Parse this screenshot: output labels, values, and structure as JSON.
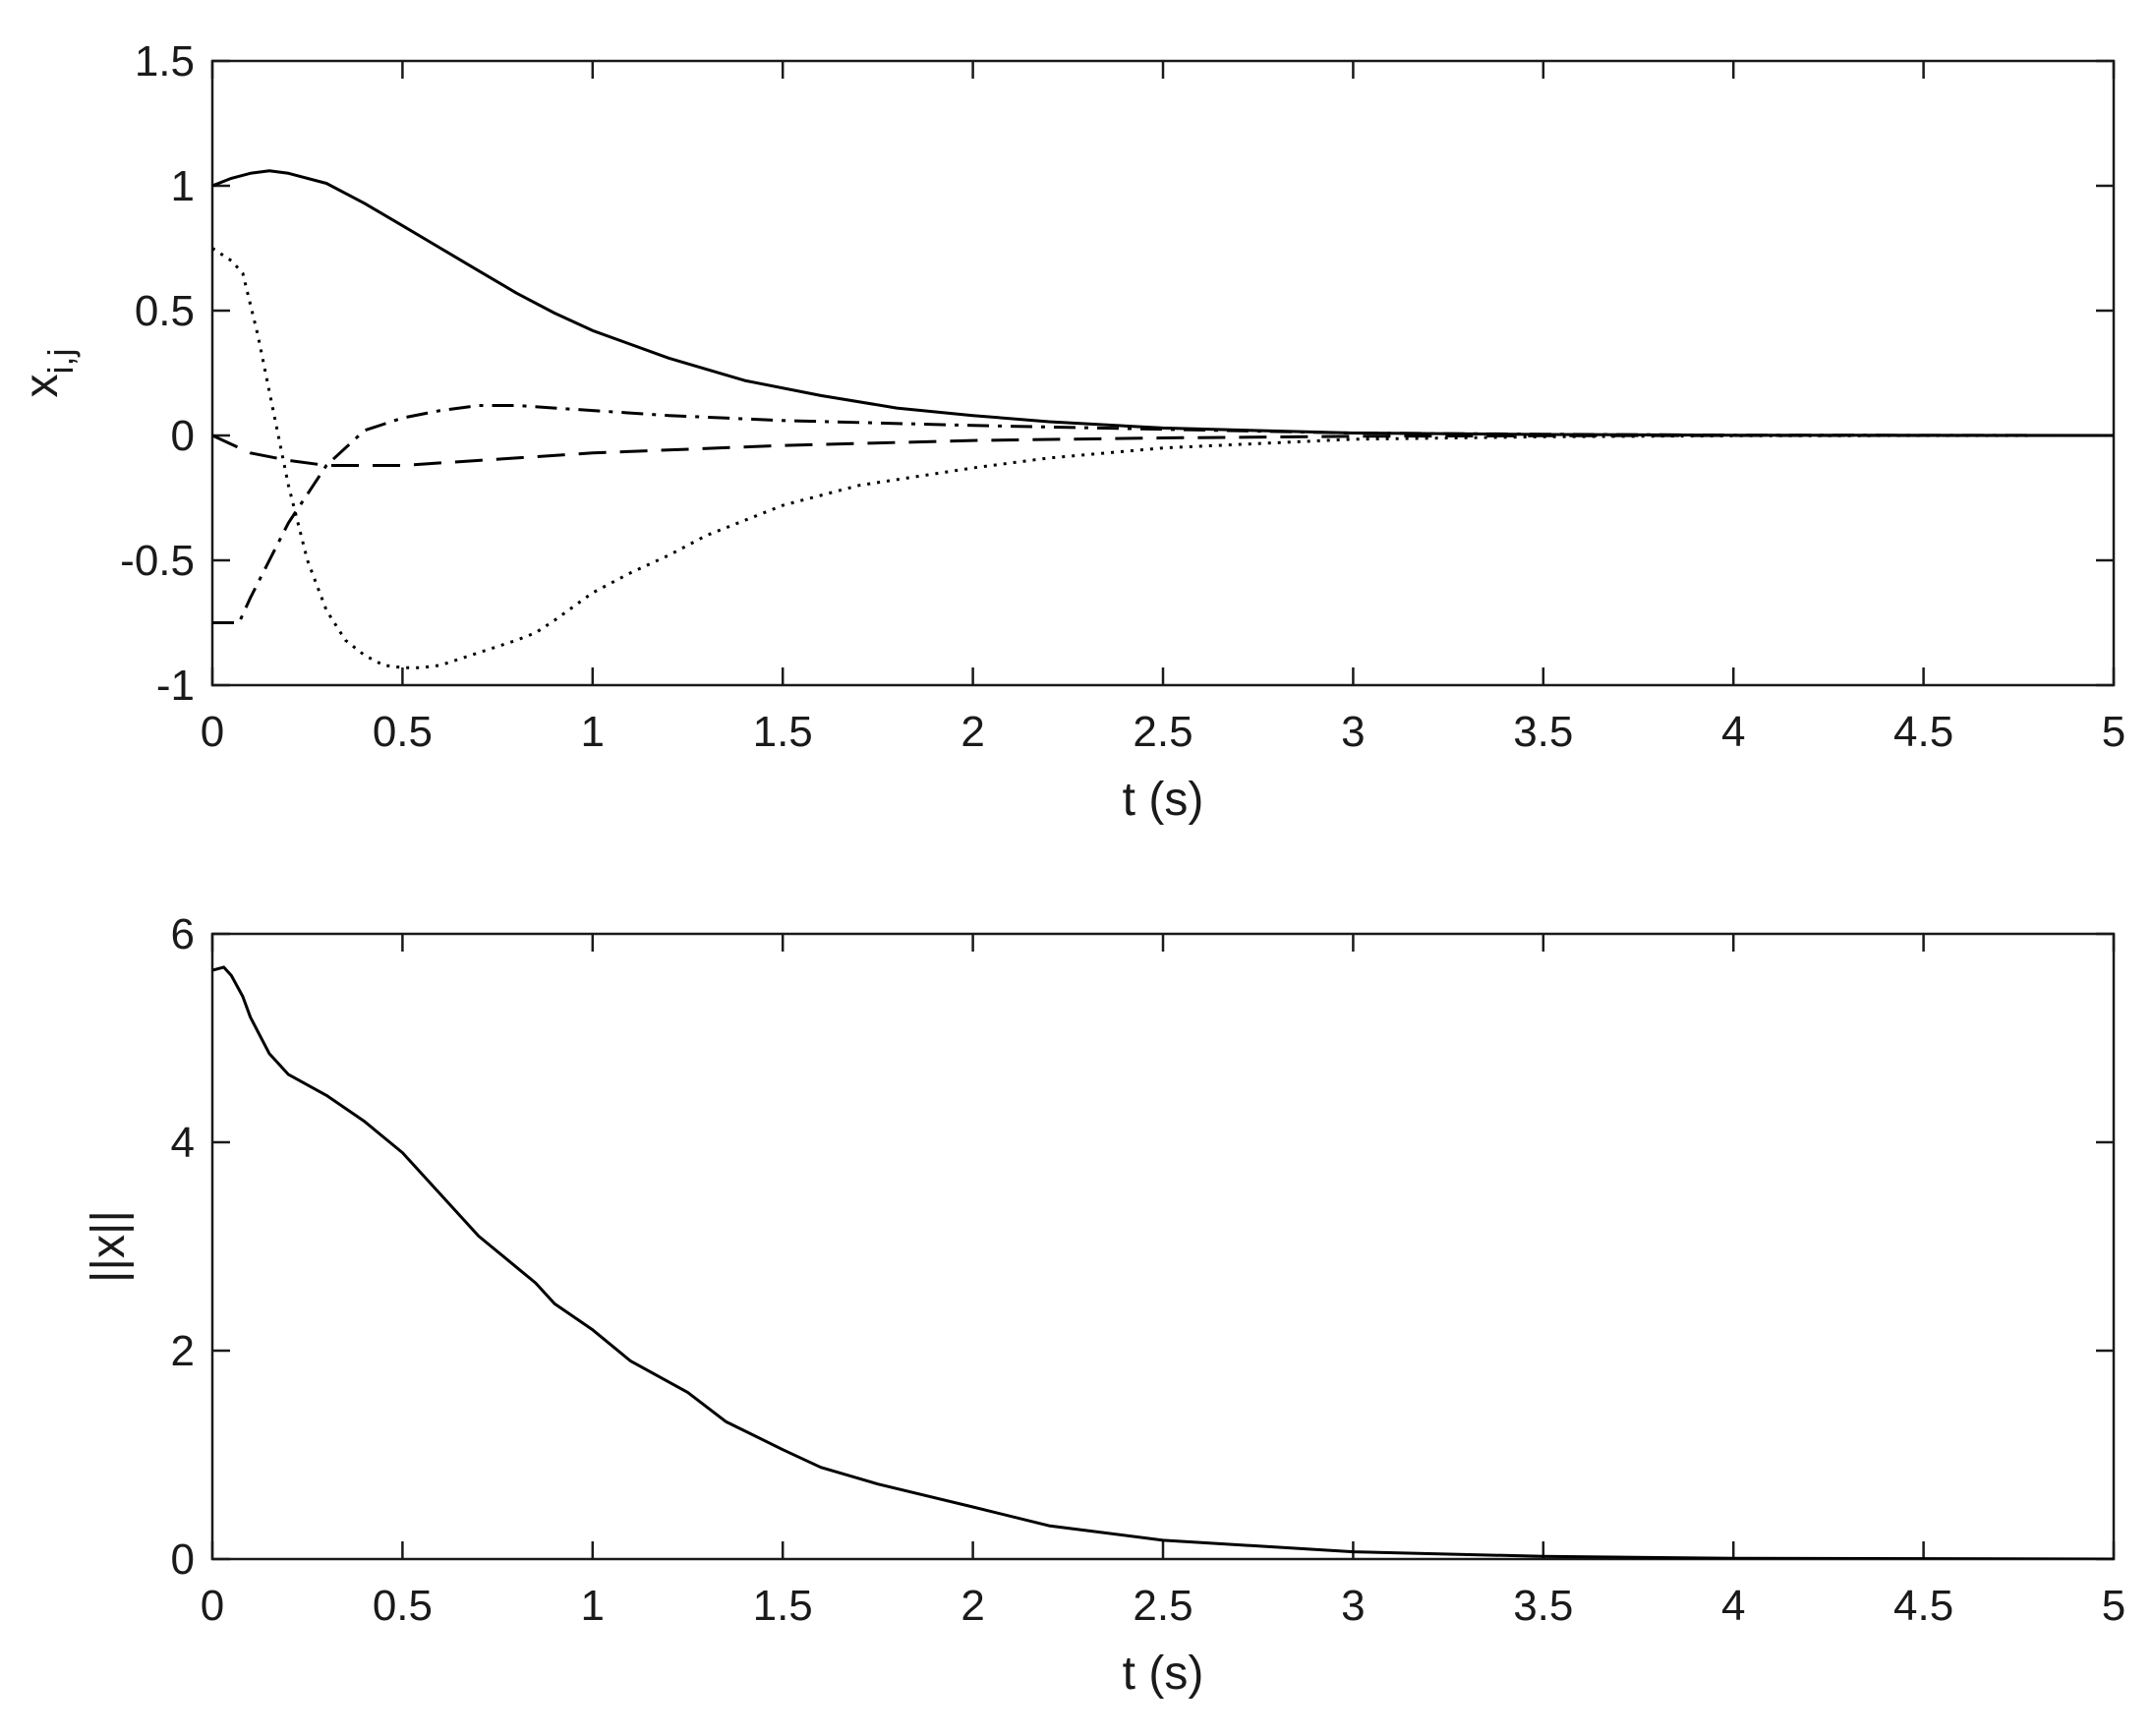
{
  "chart_data": [
    {
      "type": "line",
      "title": "",
      "xlabel": "t (s)",
      "ylabel_main": "x",
      "ylabel_sub": "i,j",
      "xlim": [
        0,
        5
      ],
      "ylim": [
        -1,
        1.5
      ],
      "xticks": [
        "0",
        "0.5",
        "1",
        "1.5",
        "2",
        "2.5",
        "3",
        "3.5",
        "4",
        "4.5",
        "5"
      ],
      "yticks": [
        "-1",
        "-0.5",
        "0",
        "0.5",
        "1",
        "1.5"
      ],
      "grid": false,
      "legend": "none",
      "series": [
        {
          "style": "solid",
          "x": [
            0,
            0.05,
            0.1,
            0.15,
            0.2,
            0.3,
            0.4,
            0.5,
            0.6,
            0.7,
            0.8,
            0.9,
            1.0,
            1.2,
            1.4,
            1.6,
            1.8,
            2.0,
            2.2,
            2.5,
            3.0,
            3.5,
            4.0,
            5.0
          ],
          "y": [
            1.0,
            1.03,
            1.05,
            1.06,
            1.05,
            1.01,
            0.93,
            0.84,
            0.75,
            0.66,
            0.57,
            0.49,
            0.42,
            0.31,
            0.22,
            0.16,
            0.11,
            0.08,
            0.055,
            0.03,
            0.01,
            0.004,
            0.001,
            0
          ]
        },
        {
          "style": "dotted",
          "x": [
            0,
            0.05,
            0.08,
            0.12,
            0.16,
            0.2,
            0.25,
            0.3,
            0.35,
            0.4,
            0.45,
            0.5,
            0.55,
            0.6,
            0.7,
            0.8,
            0.85,
            0.9,
            1.0,
            1.1,
            1.2,
            1.3,
            1.5,
            1.7,
            2.0,
            2.2,
            2.5,
            3.0,
            3.5,
            4.0,
            5.0
          ],
          "y": [
            0.75,
            0.7,
            0.65,
            0.4,
            0.1,
            -0.2,
            -0.5,
            -0.7,
            -0.82,
            -0.88,
            -0.92,
            -0.93,
            -0.93,
            -0.92,
            -0.87,
            -0.82,
            -0.79,
            -0.74,
            -0.63,
            -0.55,
            -0.48,
            -0.4,
            -0.28,
            -0.2,
            -0.13,
            -0.09,
            -0.05,
            -0.015,
            -0.005,
            -0.001,
            0
          ]
        },
        {
          "style": "dashdot",
          "x": [
            0,
            0.07,
            0.1,
            0.15,
            0.2,
            0.3,
            0.4,
            0.5,
            0.6,
            0.7,
            0.8,
            0.9,
            1.0,
            1.2,
            1.5,
            2.0,
            2.5,
            3.0,
            3.5,
            4.0,
            5.0
          ],
          "y": [
            -0.75,
            -0.75,
            -0.65,
            -0.5,
            -0.35,
            -0.12,
            0.02,
            0.07,
            0.1,
            0.12,
            0.12,
            0.11,
            0.1,
            0.08,
            0.06,
            0.04,
            0.025,
            0.01,
            0.005,
            0.001,
            0
          ]
        },
        {
          "style": "dashed",
          "x": [
            0,
            0.1,
            0.2,
            0.3,
            0.4,
            0.5,
            0.6,
            0.8,
            1.0,
            1.5,
            2.0,
            2.5,
            3.0,
            3.5,
            4.0,
            5.0
          ],
          "y": [
            0,
            -0.07,
            -0.1,
            -0.12,
            -0.12,
            -0.12,
            -0.11,
            -0.09,
            -0.07,
            -0.04,
            -0.02,
            -0.01,
            -0.003,
            -0.001,
            0,
            0
          ]
        }
      ]
    },
    {
      "type": "line",
      "title": "",
      "xlabel": "t (s)",
      "ylabel": "||x||",
      "xlim": [
        0,
        5
      ],
      "ylim": [
        0,
        6
      ],
      "xticks": [
        "0",
        "0.5",
        "1",
        "1.5",
        "2",
        "2.5",
        "3",
        "3.5",
        "4",
        "4.5",
        "5"
      ],
      "yticks": [
        "0",
        "2",
        "4",
        "6"
      ],
      "grid": false,
      "legend": "none",
      "series": [
        {
          "style": "solid",
          "x": [
            0,
            0.03,
            0.05,
            0.08,
            0.1,
            0.15,
            0.2,
            0.3,
            0.4,
            0.5,
            0.6,
            0.7,
            0.8,
            0.85,
            0.9,
            1.0,
            1.1,
            1.25,
            1.35,
            1.5,
            1.6,
            1.75,
            2.0,
            2.2,
            2.5,
            3.0,
            3.5,
            4.0,
            5.0
          ],
          "y": [
            5.65,
            5.68,
            5.6,
            5.4,
            5.2,
            4.85,
            4.65,
            4.45,
            4.2,
            3.9,
            3.5,
            3.1,
            2.8,
            2.65,
            2.45,
            2.2,
            1.9,
            1.6,
            1.32,
            1.05,
            0.88,
            0.72,
            0.5,
            0.32,
            0.18,
            0.07,
            0.025,
            0.008,
            0
          ]
        }
      ]
    }
  ]
}
